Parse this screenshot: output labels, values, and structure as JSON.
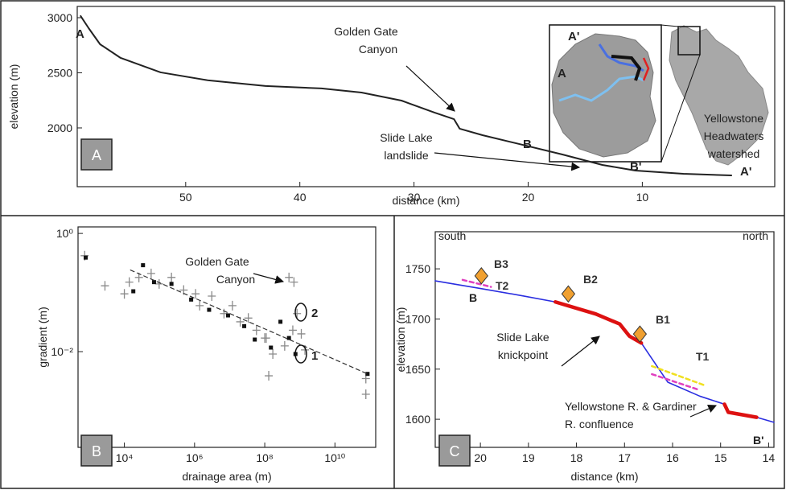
{
  "chart_data": [
    {
      "type": "line",
      "panel_label": "A",
      "xlabel": "distance (km)",
      "ylabel": "elevation (m)",
      "xlim": [
        59.5,
        -1.6
      ],
      "ylim": [
        1467,
        3102
      ],
      "xticks": [
        50,
        40,
        30,
        20,
        10
      ],
      "yticks": [
        2000,
        2500,
        3000
      ],
      "grid": false,
      "series": [
        {
          "color": "#222222",
          "style": "solid",
          "width": 2,
          "x": [
            59.2,
            58.5,
            57.5,
            55.7,
            52.2,
            48.0,
            43.0,
            38.1,
            34.6,
            31.1,
            28.2,
            26.5,
            26.0,
            24.0,
            20.5,
            17.0,
            13.5,
            10.6,
            6.4,
            2.2
          ],
          "values": [
            3015,
            2905,
            2759,
            2635,
            2504,
            2431,
            2380,
            2358,
            2321,
            2248,
            2139,
            2080,
            1993,
            1934,
            1847,
            1759,
            1664,
            1613,
            1584,
            1569
          ]
        }
      ],
      "annotations": [
        "A",
        "A'",
        "B",
        "B'",
        [
          "Golden Gate",
          "Canyon"
        ],
        [
          "Slide Lake",
          "landslide"
        ],
        "A'",
        "A",
        [
          "Yellowstone",
          "Headwaters",
          "watershed"
        ]
      ]
    },
    {
      "type": "scatter",
      "panel_label": "B",
      "xlabel": "drainage area (m)",
      "ylabel": "gradient (m)",
      "log_x": true,
      "log_y": true,
      "xlim": [
        479,
        145000000000.0
      ],
      "ylim": [
        0.00024,
        1.29
      ],
      "grid": false,
      "xticks": [
        {
          "value": 10000,
          "label": "10⁴"
        },
        {
          "value": 1000000,
          "label": "10⁶"
        },
        {
          "value": 100000000,
          "label": "10⁸"
        },
        {
          "value": 10000000000,
          "label": "10¹⁰"
        }
      ],
      "yticks": [
        {
          "value": 0.01,
          "label": "10⁻²"
        },
        {
          "value": 1,
          "label": "10⁰"
        }
      ],
      "series": [
        {
          "color": "#8a8a8a",
          "style": "cross",
          "x": [
            740,
            2800,
            10000,
            13800,
            26000,
            58000,
            98000,
            220000,
            490000,
            1070000,
            1400000,
            3100000,
            6900000,
            12000000,
            20000000,
            34000000,
            58000000,
            100000000,
            170000000,
            370000000,
            630000000,
            830000000,
            1100000000,
            1400000000,
            130000000,
            110000000,
            490000000,
            680000000,
            76000000000,
            76000000000
          ],
          "values": [
            0.42,
            0.13,
            0.095,
            0.15,
            0.18,
            0.21,
            0.14,
            0.18,
            0.11,
            0.095,
            0.06,
            0.087,
            0.044,
            0.06,
            0.032,
            0.037,
            0.023,
            0.017,
            0.0091,
            0.0125,
            0.023,
            0.044,
            0.02,
            0.0107,
            0.0039,
            0.017,
            0.18,
            0.15,
            0.0035,
            0.0019
          ]
        },
        {
          "color": "#111111",
          "style": "square",
          "x": [
            790,
            18000,
            34000,
            70000,
            220000,
            800000,
            2600000,
            9000000,
            26000000,
            52000000,
            150000000,
            280000000,
            490000000,
            750000000,
            85000000000
          ],
          "values": [
            0.39,
            0.105,
            0.29,
            0.15,
            0.14,
            0.076,
            0.051,
            0.041,
            0.027,
            0.016,
            0.0117,
            0.032,
            0.017,
            0.0091,
            0.0042
          ]
        },
        {
          "color": "#333333",
          "style": "dashed",
          "width": 1.2,
          "x": [
            15000,
            85000000000
          ],
          "values": [
            0.24,
            0.0042
          ]
        }
      ],
      "annotations": [
        [
          "Golden Gate",
          "Canyon"
        ],
        "2",
        "1"
      ]
    },
    {
      "type": "line",
      "panel_label": "C",
      "xlabel": "distance (km)",
      "ylabel": "elevation (m)",
      "xlim": [
        20.94,
        13.89
      ],
      "ylim": [
        1572,
        1787
      ],
      "xticks": [
        20,
        19,
        18,
        17,
        16,
        15,
        14
      ],
      "yticks": [
        1600,
        1650,
        1700,
        1750
      ],
      "grid": false,
      "series": [
        {
          "color": "#2a2ee0",
          "style": "solid",
          "width": 1.6,
          "x": [
            20.94,
            19.95,
            19.11,
            18.44,
            17.6,
            17.1,
            16.9,
            16.65,
            16.1,
            15.43,
            14.92,
            14.84,
            14.25,
            13.89
          ],
          "values": [
            1738,
            1730,
            1723,
            1717,
            1705,
            1695,
            1683,
            1676,
            1637,
            1623,
            1615,
            1607,
            1602,
            1597
          ]
        },
        {
          "color": "#dd1111",
          "style": "solid",
          "width": 4.5,
          "x": [
            18.44,
            17.6,
            17.1,
            16.9,
            16.65
          ],
          "values": [
            1717,
            1705,
            1695,
            1683,
            1676
          ]
        },
        {
          "color": "#dd1111",
          "style": "solid",
          "width": 4.5,
          "x": [
            14.92,
            14.84,
            14.25
          ],
          "values": [
            1615,
            1607,
            1602
          ]
        },
        {
          "color": "#e040c0",
          "style": "dashed",
          "width": 2.5,
          "x": [
            20.37,
            19.78
          ],
          "values": [
            1739,
            1732
          ]
        },
        {
          "color": "#f0e020",
          "style": "dashed",
          "width": 2.5,
          "x": [
            16.43,
            15.34
          ],
          "values": [
            1653,
            1634
          ]
        },
        {
          "color": "#e040c0",
          "style": "dashed",
          "width": 2.5,
          "x": [
            16.43,
            15.43
          ],
          "values": [
            1645,
            1629
          ]
        },
        {
          "color": "#f0a030",
          "style": "diamond",
          "x": [
            19.98,
            18.17,
            16.68
          ],
          "values": [
            1743,
            1725,
            1685
          ]
        }
      ],
      "annotations": [
        "south",
        "north",
        "B",
        "B'",
        "B3",
        "T2",
        "B2",
        "B1",
        "T1",
        [
          "Slide Lake",
          "knickpoint"
        ],
        [
          "Yellowstone R. & Gardiner",
          "R. confluence"
        ]
      ]
    }
  ]
}
